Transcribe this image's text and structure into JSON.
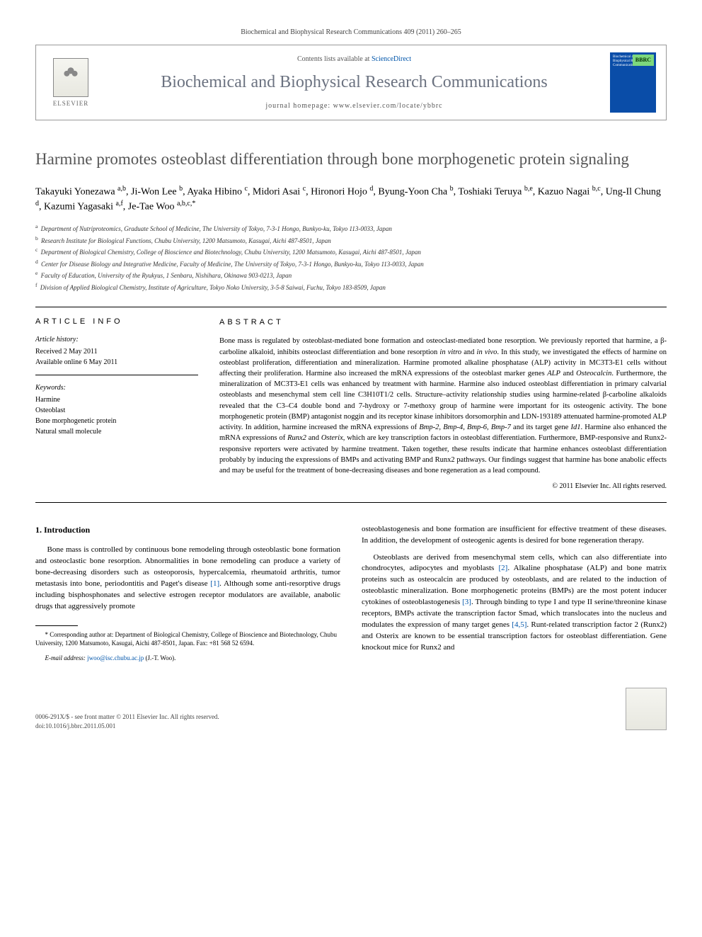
{
  "header": {
    "citation": "Biochemical and Biophysical Research Communications 409 (2011) 260–265"
  },
  "masthead": {
    "elsevier": "ELSEVIER",
    "contents_prefix": "Contents lists available at ",
    "contents_link": "ScienceDirect",
    "journal": "Biochemical and Biophysical Research Communications",
    "homepage_prefix": "journal homepage: ",
    "homepage": "www.elsevier.com/locate/ybbrc",
    "cover_corner": "BBRC",
    "cover_line1": "Biochemical and Biophysical Research Communications"
  },
  "title": "Harmine promotes osteoblast differentiation through bone morphogenetic protein signaling",
  "authors_html": "Takayuki Yonezawa <sup>a,b</sup>, Ji-Won Lee <sup>b</sup>, Ayaka Hibino <sup>c</sup>, Midori Asai <sup>c</sup>, Hironori Hojo <sup>d</sup>, Byung-Yoon Cha <sup>b</sup>, Toshiaki Teruya <sup>b,e</sup>, Kazuo Nagai <sup>b,c</sup>, Ung-Il Chung <sup>d</sup>, Kazumi Yagasaki <sup>a,f</sup>, Je-Tae Woo <sup>a,b,c,*</sup>",
  "affiliations": {
    "a": "Department of Nutriproteomics, Graduate School of Medicine, The University of Tokyo, 7-3-1 Hongo, Bunkyo-ku, Tokyo 113-0033, Japan",
    "b": "Research Institute for Biological Functions, Chubu University, 1200 Matsumoto, Kasugai, Aichi 487-8501, Japan",
    "c": "Department of Biological Chemistry, College of Bioscience and Biotechnology, Chubu University, 1200 Matsumoto, Kasugai, Aichi 487-8501, Japan",
    "d": "Center for Disease Biology and Integrative Medicine, Faculty of Medicine, The University of Tokyo, 7-3-1 Hongo, Bunkyo-ku, Tokyo 113-0033, Japan",
    "e": "Faculty of Education, University of the Ryukyus, 1 Senbaru, Nishihara, Okinawa 903-0213, Japan",
    "f": "Division of Applied Biological Chemistry, Institute of Agriculture, Tokyo Noko University, 3-5-8 Saiwai, Fuchu, Tokyo 183-8509, Japan"
  },
  "article_info": {
    "label": "ARTICLE INFO",
    "history_label": "Article history:",
    "received": "Received 2 May 2011",
    "available": "Available online 6 May 2011",
    "keywords_label": "Keywords:",
    "keywords": [
      "Harmine",
      "Osteoblast",
      "Bone morphogenetic protein",
      "Natural small molecule"
    ]
  },
  "abstract": {
    "label": "ABSTRACT",
    "text": "Bone mass is regulated by osteoblast-mediated bone formation and osteoclast-mediated bone resorption. We previously reported that harmine, a β-carboline alkaloid, inhibits osteoclast differentiation and bone resorption in vitro and in vivo. In this study, we investigated the effects of harmine on osteoblast proliferation, differentiation and mineralization. Harmine promoted alkaline phosphatase (ALP) activity in MC3T3-E1 cells without affecting their proliferation. Harmine also increased the mRNA expressions of the osteoblast marker genes ALP and Osteocalcin. Furthermore, the mineralization of MC3T3-E1 cells was enhanced by treatment with harmine. Harmine also induced osteoblast differentiation in primary calvarial osteoblasts and mesenchymal stem cell line C3H10T1/2 cells. Structure–activity relationship studies using harmine-related β-carboline alkaloids revealed that the C3–C4 double bond and 7-hydroxy or 7-methoxy group of harmine were important for its osteogenic activity. The bone morphogenetic protein (BMP) antagonist noggin and its receptor kinase inhibitors dorsomorphin and LDN-193189 attenuated harmine-promoted ALP activity. In addition, harmine increased the mRNA expressions of Bmp-2, Bmp-4, Bmp-6, Bmp-7 and its target gene Id1. Harmine also enhanced the mRNA expressions of Runx2 and Osterix, which are key transcription factors in osteoblast differentiation. Furthermore, BMP-responsive and Runx2-responsive reporters were activated by harmine treatment. Taken together, these results indicate that harmine enhances osteoblast differentiation probably by inducing the expressions of BMPs and activating BMP and Runx2 pathways. Our findings suggest that harmine has bone anabolic effects and may be useful for the treatment of bone-decreasing diseases and bone regeneration as a lead compound.",
    "copyright": "© 2011 Elsevier Inc. All rights reserved."
  },
  "body": {
    "intro_heading": "1. Introduction",
    "left_p1": "Bone mass is controlled by continuous bone remodeling through osteoblastic bone formation and osteoclastic bone resorption. Abnormalities in bone remodeling can produce a variety of bone-decreasing disorders such as osteoporosis, hypercalcemia, rheumatoid arthritis, tumor metastasis into bone, periodontitis and Paget's disease ",
    "ref1": "[1]",
    "left_p1_b": ". Although some anti-resorptive drugs including bisphosphonates and selective estrogen receptor modulators are available, anabolic drugs that aggressively promote",
    "right_p1": "osteoblastogenesis and bone formation are insufficient for effective treatment of these diseases. In addition, the development of osteogenic agents is desired for bone regeneration therapy.",
    "right_p2a": "Osteoblasts are derived from mesenchymal stem cells, which can also differentiate into chondrocytes, adipocytes and myoblasts ",
    "ref2": "[2]",
    "right_p2b": ". Alkaline phosphatase (ALP) and bone matrix proteins such as osteocalcin are produced by osteoblasts, and are related to the induction of osteoblastic mineralization. Bone morphogenetic proteins (BMPs) are the most potent inducer cytokines of osteoblastogenesis ",
    "ref3": "[3]",
    "right_p2c": ". Through binding to type I and type II serine/threonine kinase receptors, BMPs activate the transcription factor Smad, which translocates into the nucleus and modulates the expression of many target genes ",
    "ref45": "[4,5]",
    "right_p2d": ". Runt-related transcription factor 2 (Runx2) and Osterix are known to be essential transcription factors for osteoblast differentiation. Gene knockout mice for Runx2 and"
  },
  "footnotes": {
    "corr": "* Corresponding author at: Department of Biological Chemistry, College of Bioscience and Biotechnology, Chubu University, 1200 Matsumoto, Kasugai, Aichi 487-8501, Japan. Fax: +81 568 52 6594.",
    "email_label": "E-mail address:",
    "email": "jwoo@isc.chubu.ac.jp",
    "email_who": "(J.-T. Woo)."
  },
  "footer": {
    "issn": "0006-291X/$ - see front matter © 2011 Elsevier Inc. All rights reserved.",
    "doi": "doi:10.1016/j.bbrc.2011.05.001"
  },
  "colors": {
    "journal_gray": "#6b7280",
    "link_blue": "#0055aa",
    "cover_blue": "#0a4da8",
    "cover_green": "#7dd87d"
  }
}
